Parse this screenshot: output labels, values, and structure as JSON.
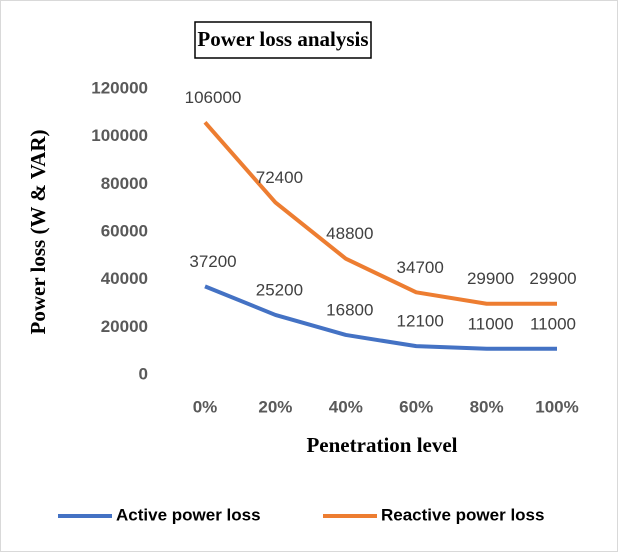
{
  "chart_data": {
    "type": "line",
    "title": "Power loss analysis",
    "x_label": "Penetration level",
    "y_label": "Power loss (W & VAR)",
    "categories": [
      "0%",
      "20%",
      "40%",
      "60%",
      "80%",
      "100%"
    ],
    "series": [
      {
        "name": "Active power loss",
        "color": "#4472c4",
        "values": [
          37200,
          25200,
          16800,
          12100,
          11000,
          11000
        ]
      },
      {
        "name": "Reactive power loss",
        "color": "#ed7d31",
        "values": [
          106000,
          72400,
          48800,
          34700,
          29900,
          29900
        ]
      }
    ],
    "ylim": [
      0,
      120000
    ],
    "yticks": [
      0,
      20000,
      40000,
      60000,
      80000,
      100000,
      120000
    ],
    "grid": false,
    "legend": "bottom"
  }
}
